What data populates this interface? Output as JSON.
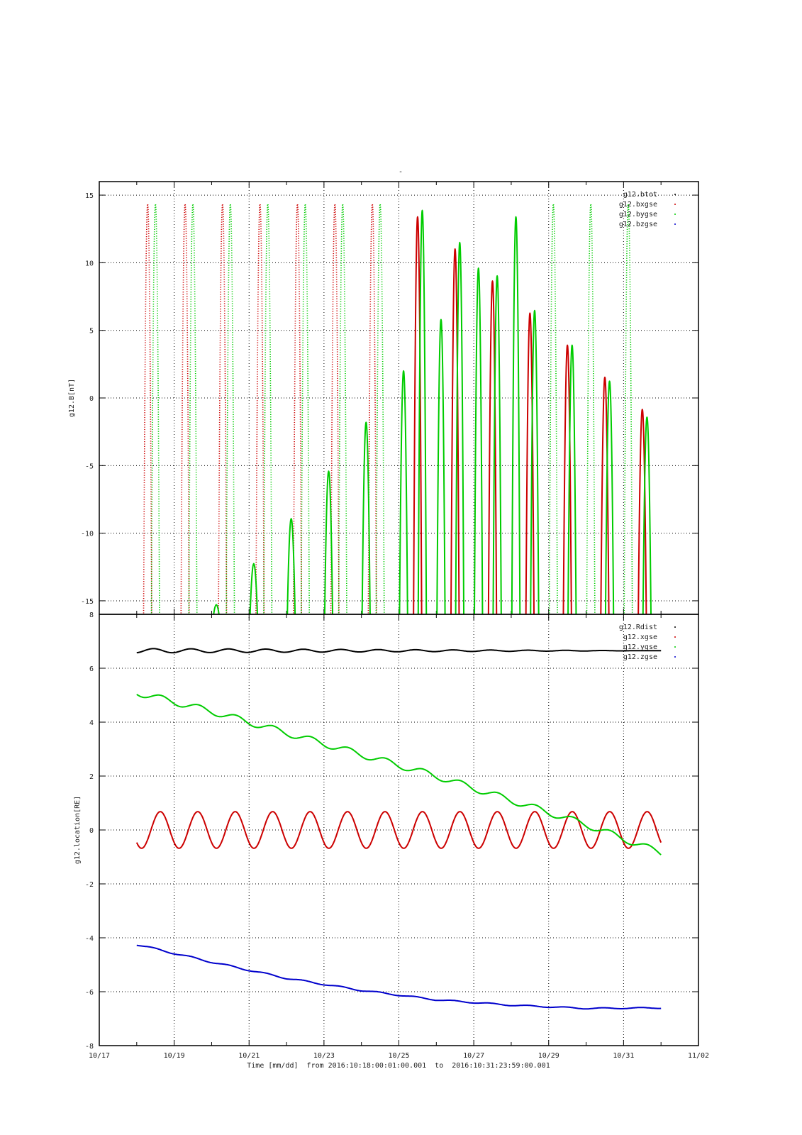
{
  "figure": {
    "top_title": "-",
    "footer": "Time [mm/dd]  from 2016:10:18:00:01:00.001  to  2016:10:31:23:59:00.001"
  },
  "chart_data": [
    {
      "type": "line",
      "title": "-",
      "ylabel": "g12.B[nT]",
      "xlabel": "",
      "ylim": [
        -16,
        16
      ],
      "yticks": [
        -15,
        -10,
        -5,
        0,
        5,
        10,
        15
      ],
      "xlim": [
        "10/17",
        "11/02"
      ],
      "grid": true,
      "legend_position": "top-right",
      "series": [
        {
          "name": "g12.btot",
          "color": "#000000",
          "values": []
        },
        {
          "name": "g12.bxgse",
          "color": "#cc0000",
          "peaks": [
            [
              "10/18 07:00",
              16
            ],
            [
              "10/19 07:00",
              16
            ],
            [
              "10/20 07:00",
              16
            ],
            [
              "10/21 07:00",
              16
            ],
            [
              "10/22 07:00",
              16
            ],
            [
              "10/23 07:00",
              16
            ],
            [
              "10/24 07:00",
              16
            ],
            [
              "10/25 12:00",
              15
            ],
            [
              "10/26 12:00",
              12.5
            ],
            [
              "10/27 12:00",
              10
            ],
            [
              "10/28 12:00",
              7.5
            ],
            [
              "10/29 12:00",
              5
            ],
            [
              "10/30 12:00",
              2.5
            ],
            [
              "10/31 12:00",
              0
            ]
          ]
        },
        {
          "name": "g12.bygse",
          "color": "#00cc00",
          "peaks": [
            [
              "10/18 12:00",
              16
            ],
            [
              "10/19 12:00",
              16
            ],
            [
              "10/20 03:00",
              -15.2
            ],
            [
              "10/20 12:00",
              16
            ],
            [
              "10/21 03:00",
              -12
            ],
            [
              "10/21 12:00",
              16
            ],
            [
              "10/22 03:00",
              -8.5
            ],
            [
              "10/22 12:00",
              16
            ],
            [
              "10/23 03:00",
              -4.8
            ],
            [
              "10/23 12:00",
              16
            ],
            [
              "10/24 03:00",
              -1
            ],
            [
              "10/24 12:00",
              16
            ],
            [
              "10/25 03:00",
              3
            ],
            [
              "10/25 15:00",
              15.5
            ],
            [
              "10/26 03:00",
              7
            ],
            [
              "10/26 15:00",
              13
            ],
            [
              "10/27 03:00",
              11
            ],
            [
              "10/27 15:00",
              10.4
            ],
            [
              "10/28 03:00",
              15
            ],
            [
              "10/28 15:00",
              7.7
            ],
            [
              "10/29 03:00",
              16
            ],
            [
              "10/29 15:00",
              5
            ],
            [
              "10/30 03:00",
              16
            ],
            [
              "10/30 15:00",
              2.2
            ],
            [
              "10/31 03:00",
              16
            ],
            [
              "10/31 15:00",
              -0.6
            ]
          ]
        },
        {
          "name": "g12.bzgse",
          "color": "#0000cc",
          "values": []
        }
      ]
    },
    {
      "type": "line",
      "ylabel": "g12.location[RE]",
      "xlabel": "Time [mm/dd]  from 2016:10:18:00:01:00.001  to  2016:10:31:23:59:00.001",
      "ylim": [
        -8,
        8
      ],
      "yticks": [
        -8,
        -6,
        -4,
        -2,
        0,
        2,
        4,
        6,
        8
      ],
      "x_tick_labels": [
        "10/17",
        "10/19",
        "10/21",
        "10/23",
        "10/25",
        "10/27",
        "10/29",
        "10/31",
        "11/02"
      ],
      "x_range": [
        "2016-10-18 00:01",
        "2016-10-31 23:59"
      ],
      "grid": true,
      "legend_position": "top-right",
      "series": [
        {
          "name": "g12.Rdist",
          "color": "#000000",
          "x": [
            "10/18",
            "10/20",
            "10/22",
            "10/24",
            "10/26",
            "10/28",
            "10/30",
            "11/01"
          ],
          "values": [
            6.65,
            6.65,
            6.65,
            6.65,
            6.65,
            6.65,
            6.65,
            6.65
          ],
          "daily_oscillation_amplitude": [
            0.08,
            0.0
          ]
        },
        {
          "name": "g12.xgse",
          "color": "#cc0000",
          "x": [
            "10/18",
            "11/01"
          ],
          "values": [
            0,
            0
          ],
          "daily_oscillation_amplitude": [
            0.68,
            0.68
          ]
        },
        {
          "name": "g12.ygse",
          "color": "#00cc00",
          "x": [
            "10/18",
            "10/20",
            "10/22",
            "10/24",
            "10/26",
            "10/28",
            "10/30",
            "11/01"
          ],
          "values": [
            5.1,
            4.4,
            3.6,
            2.8,
            2.0,
            1.1,
            0.2,
            -0.85
          ],
          "daily_oscillation_amplitude": [
            0.12,
            0.12
          ]
        },
        {
          "name": "g12.zgse",
          "color": "#0000cc",
          "x": [
            "10/18",
            "10/20",
            "10/22",
            "10/24",
            "10/26",
            "10/28",
            "10/30",
            "11/01"
          ],
          "values": [
            -4.25,
            -4.9,
            -5.5,
            -5.95,
            -6.3,
            -6.5,
            -6.62,
            -6.6
          ],
          "daily_oscillation_amplitude": [
            0.03,
            0.02
          ]
        }
      ]
    }
  ]
}
